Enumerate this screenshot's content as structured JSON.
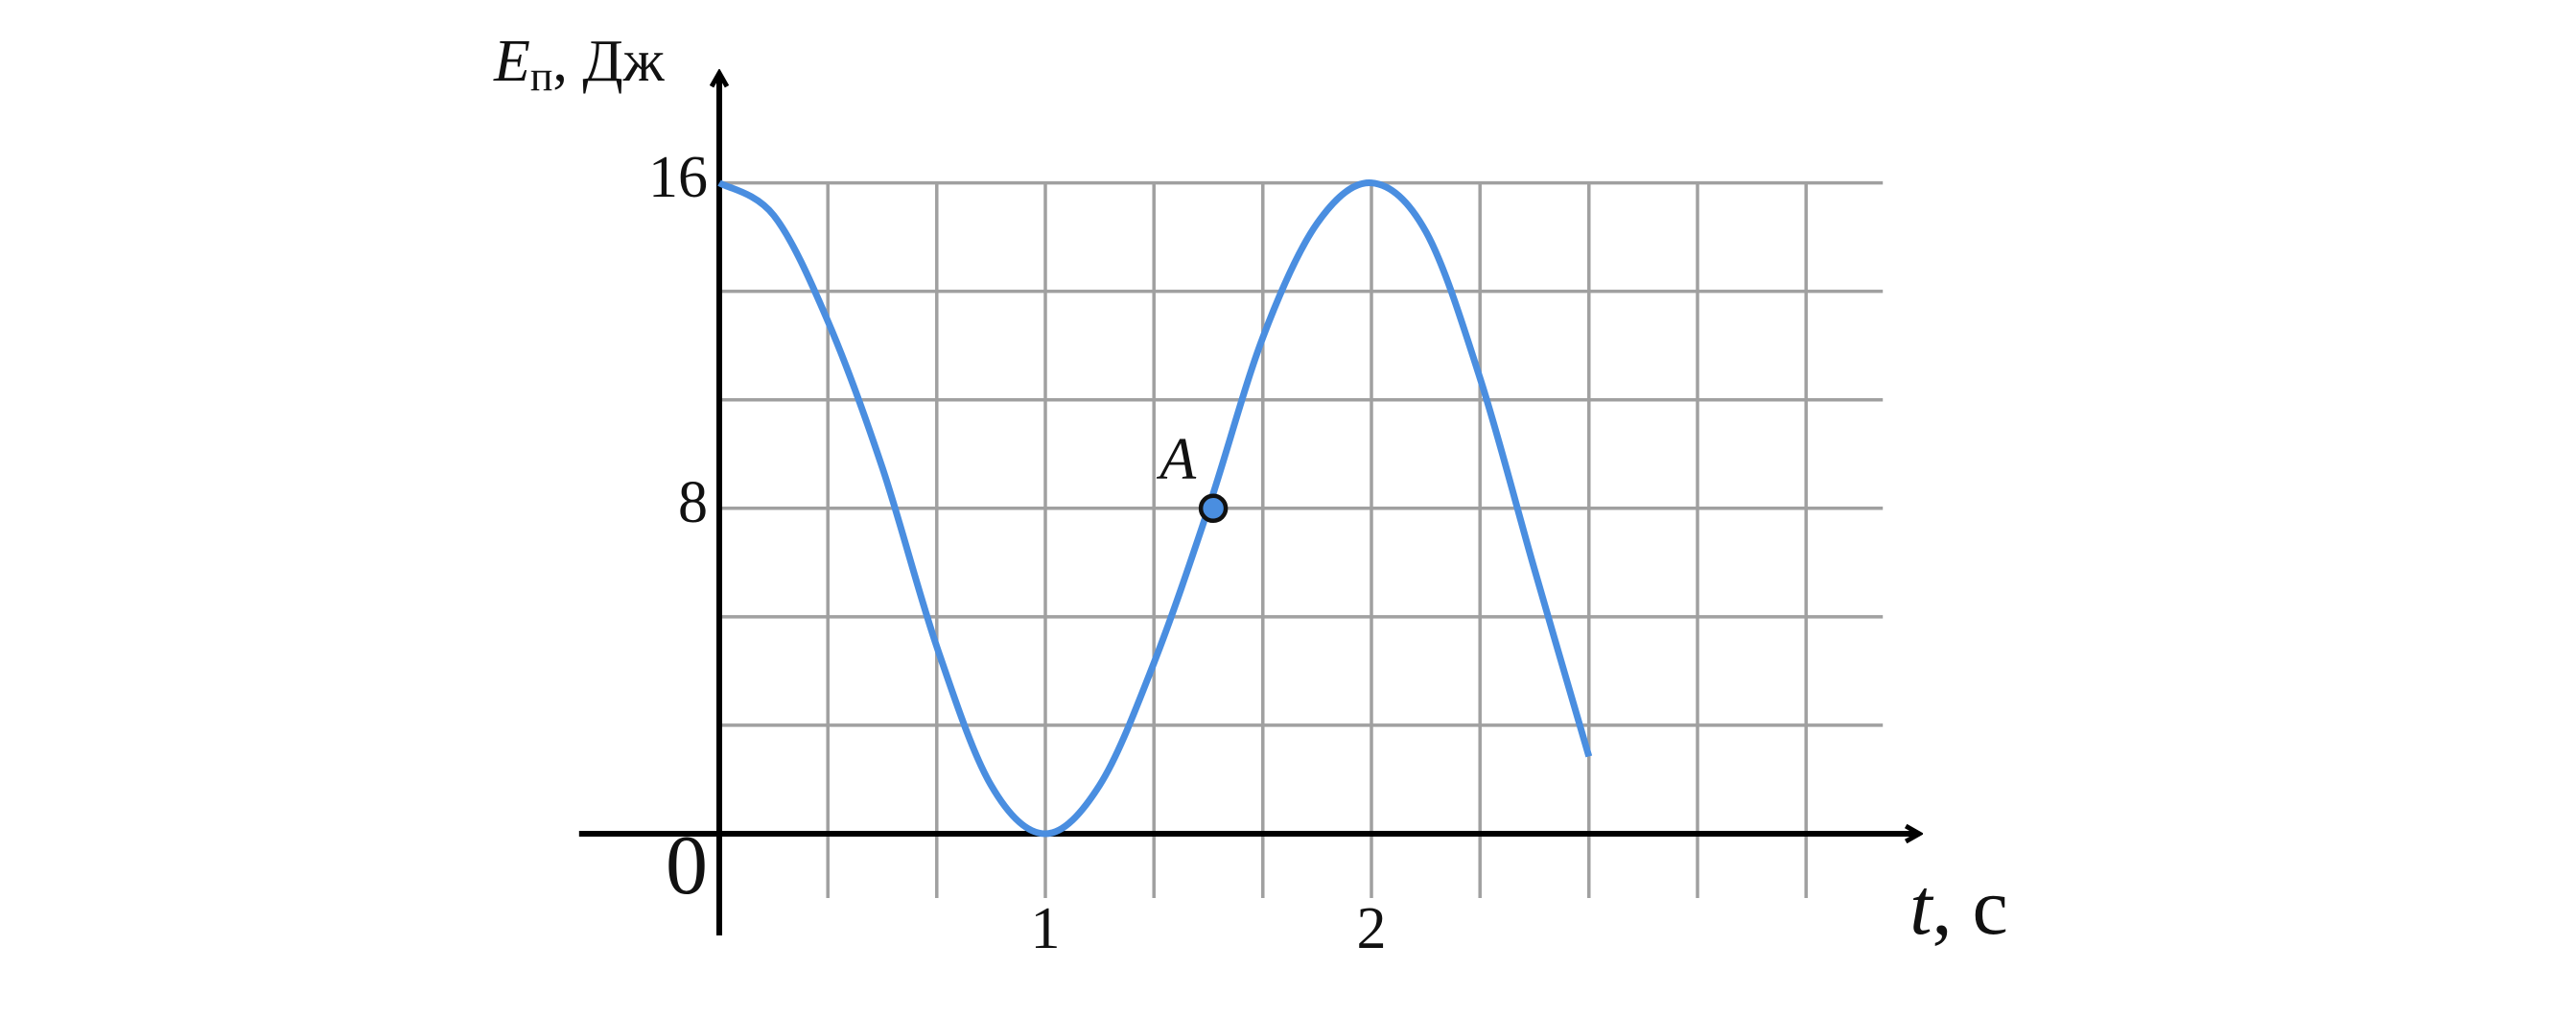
{
  "chart_data": {
    "type": "line",
    "y_label": {
      "symbol": "E",
      "subscript": "п",
      "unit": ", Дж"
    },
    "x_label": {
      "symbol": "t",
      "unit": ", с"
    },
    "x": [
      0,
      0.167,
      0.333,
      0.5,
      0.667,
      0.833,
      1,
      1.167,
      1.333,
      1.5,
      1.667,
      1.833,
      2,
      2.167,
      2.333,
      2.5,
      2.667
    ],
    "series": [
      {
        "color": "#4a8ee0",
        "values": [
          16,
          15.2,
          12.6,
          9,
          4.6,
          1.2,
          0,
          1.2,
          4.2,
          8,
          12.2,
          15,
          16,
          14.8,
          11.2,
          6.5,
          1.9
        ]
      }
    ],
    "point": {
      "label": "A",
      "x": 1.515,
      "y": 8,
      "color": "#4a8ee0"
    },
    "xlim": [
      -0.43,
      3.68
    ],
    "ylim": [
      -2.5,
      18.7
    ],
    "xticks": [
      1,
      2
    ],
    "yticks": [
      0,
      8,
      16
    ],
    "x_grid": [
      0.333,
      0.667,
      1,
      1.333,
      1.667,
      2,
      2.333,
      2.667,
      3,
      3.333
    ],
    "y_grid": [
      2.667,
      5.333,
      8,
      10.667,
      13.333,
      16
    ],
    "grid": true
  }
}
